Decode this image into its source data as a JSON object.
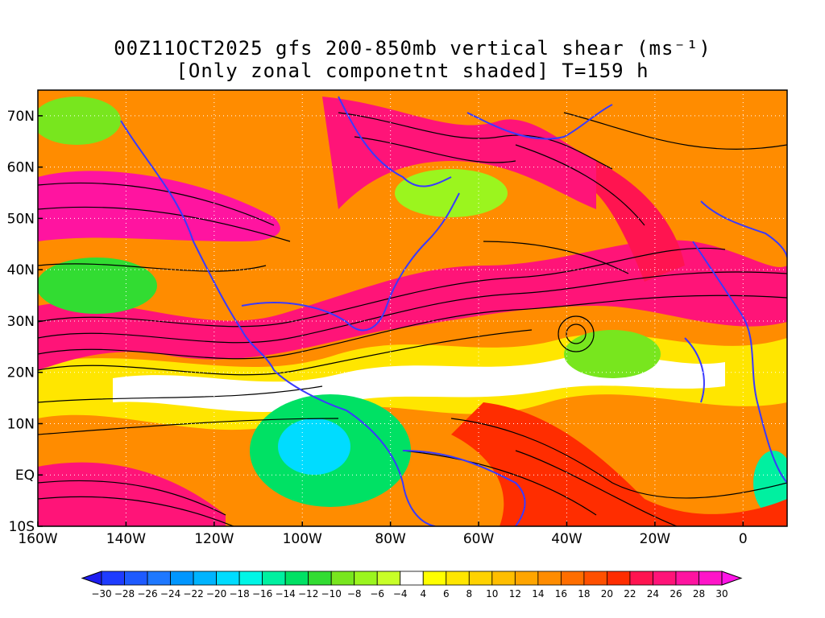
{
  "title": {
    "line1": "00Z11OCT2025 gfs 200-850mb vertical shear (ms⁻¹)",
    "line2": "[Only zonal componetnt shaded] T=159 h"
  },
  "map": {
    "region": "Atlantic / Western Hemisphere tropics",
    "lat_labels": [
      "70N",
      "60N",
      "50N",
      "40N",
      "30N",
      "20N",
      "10N",
      "EQ",
      "10S"
    ],
    "lat_values": [
      70,
      60,
      50,
      40,
      30,
      20,
      10,
      0,
      -10
    ],
    "lon_labels": [
      "160W",
      "140W",
      "120W",
      "100W",
      "80W",
      "60W",
      "40W",
      "20W",
      "0"
    ],
    "lon_values": [
      -160,
      -140,
      -120,
      -100,
      -80,
      -60,
      -40,
      -20,
      0
    ],
    "lon_range": [
      -160,
      10
    ],
    "lat_range": [
      -10,
      75
    ]
  },
  "colorbar": {
    "tick_labels": [
      "-30",
      "-28",
      "-26",
      "-24",
      "-22",
      "-20",
      "-18",
      "-16",
      "-14",
      "-12",
      "-10",
      "-8",
      "-6",
      "-4",
      "4",
      "6",
      "8",
      "10",
      "12",
      "14",
      "16",
      "18",
      "20",
      "22",
      "24",
      "26",
      "28",
      "30"
    ],
    "colors": [
      "#1e1ef0",
      "#1e3cff",
      "#1e5aff",
      "#1e78ff",
      "#0096ff",
      "#00b4ff",
      "#00dcff",
      "#00f5e6",
      "#00f0a0",
      "#00e164",
      "#32dc32",
      "#78e61e",
      "#9bf51e",
      "#c8ff28",
      "#ffffff",
      "#ffff00",
      "#ffe600",
      "#ffd200",
      "#ffbe00",
      "#ffa500",
      "#ff8c00",
      "#ff6e00",
      "#ff5000",
      "#ff2d00",
      "#ff1450",
      "#ff1478",
      "#ff14a0",
      "#ff14c8",
      "#ff14e6"
    ]
  }
}
